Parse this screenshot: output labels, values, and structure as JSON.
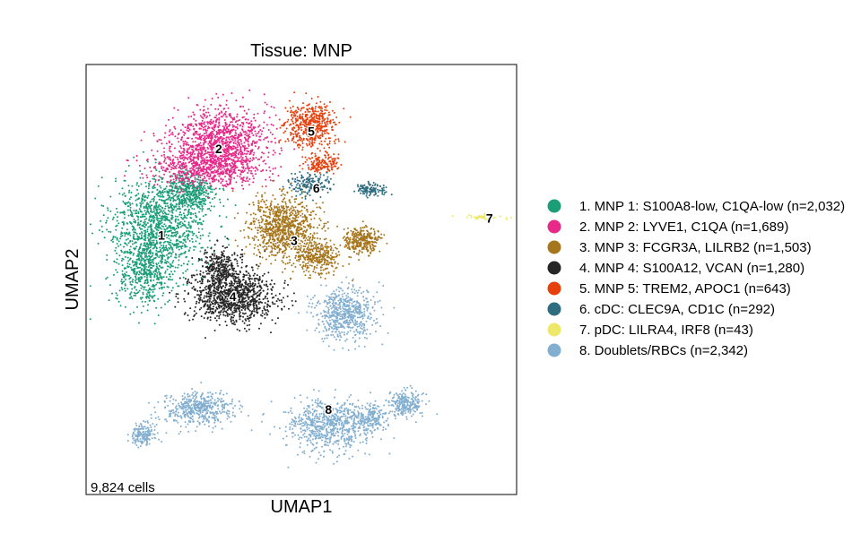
{
  "chart_data": {
    "type": "scatter",
    "title": "Tissue: MNP",
    "xlabel": "UMAP1",
    "ylabel": "UMAP2",
    "xlim": [
      0,
      100
    ],
    "ylim": [
      0,
      100
    ],
    "grid": false,
    "ticks": false,
    "legend_position": "right",
    "footnote": "9,824 cells",
    "point_size": 1.3,
    "clusters": [
      {
        "id": "1",
        "label": "1. MNP 1: S100A8-low, C1QA-low (n=2,032)",
        "n": 2032,
        "color": "#1b9e77",
        "center": [
          17.5,
          60.3
        ],
        "blobs": [
          [
            17,
            63,
            11,
            11,
            0.55
          ],
          [
            14,
            52,
            7,
            8,
            0.25
          ],
          [
            24,
            70,
            6,
            5,
            0.2
          ]
        ]
      },
      {
        "id": "2",
        "label": "2. MNP 2: LYVE1, C1QA (n=1,689)",
        "n": 1689,
        "color": "#e7298a",
        "center": [
          30.8,
          80.4
        ],
        "blobs": [
          [
            31,
            82,
            11,
            8,
            0.65
          ],
          [
            28,
            76,
            13,
            4,
            0.35
          ]
        ]
      },
      {
        "id": "3",
        "label": "3. MNP 3: FCGR3A, LILRB2 (n=1,503)",
        "n": 1503,
        "color": "#a6761d",
        "center": [
          48.3,
          59.1
        ],
        "blobs": [
          [
            46,
            62,
            8,
            7,
            0.6
          ],
          [
            54,
            55,
            5,
            4,
            0.2
          ],
          [
            64,
            59,
            4,
            3,
            0.2
          ]
        ]
      },
      {
        "id": "4",
        "label": "4. MNP 4: S100A12, VCAN (n=1,280)",
        "n": 1280,
        "color": "#262626",
        "center": [
          34.1,
          46.0
        ],
        "blobs": [
          [
            34,
            46,
            10,
            6,
            0.8
          ],
          [
            31,
            53,
            5,
            4,
            0.2
          ]
        ]
      },
      {
        "id": "5",
        "label": "5. MNP 5: TREM2, APOC1 (n=643)",
        "n": 643,
        "color": "#e6400d",
        "center": [
          52.3,
          84.5
        ],
        "blobs": [
          [
            52,
            86,
            6,
            5,
            0.75
          ],
          [
            55,
            77,
            4,
            2,
            0.25
          ]
        ]
      },
      {
        "id": "6",
        "label": "6. cDC: CLEC9A, CD1C (n=292)",
        "n": 292,
        "color": "#2e6d80",
        "center": [
          53.5,
          71.2
        ],
        "blobs": [
          [
            52,
            72,
            5,
            2.5,
            0.6
          ],
          [
            66,
            71,
            3,
            1.4,
            0.4
          ]
        ]
      },
      {
        "id": "7",
        "label": "7. pDC: LILRA4, IRF8 (n=43)",
        "n": 43,
        "color": "#ede86a",
        "center": [
          93.7,
          64.3
        ],
        "blobs": [
          [
            92,
            64.5,
            5,
            0.6,
            1.0
          ]
        ]
      },
      {
        "id": "8",
        "label": "8. Doublets/RBCs (n=2,342)",
        "n": 2342,
        "color": "#82aed0",
        "center": [
          56.3,
          19.8
        ],
        "blobs": [
          [
            56,
            16,
            10,
            6,
            0.3
          ],
          [
            66,
            18,
            5,
            3,
            0.08
          ],
          [
            74,
            21,
            4,
            3,
            0.1
          ],
          [
            26,
            20,
            8,
            4,
            0.2
          ],
          [
            13,
            14,
            3,
            3,
            0.07
          ],
          [
            60,
            42,
            7,
            6,
            0.25
          ]
        ]
      }
    ]
  }
}
